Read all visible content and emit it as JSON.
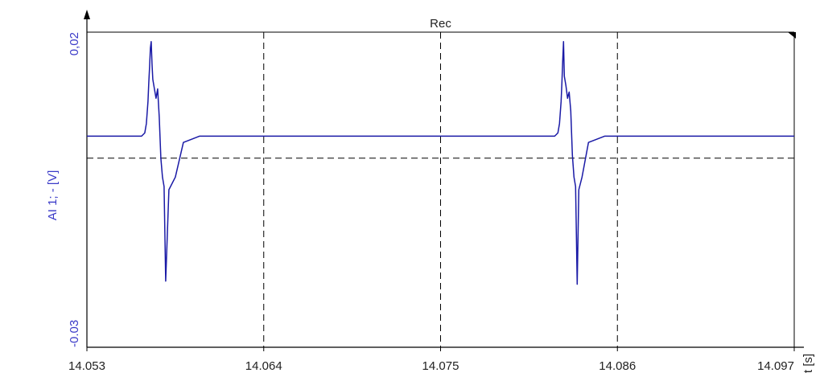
{
  "chart_data": {
    "type": "line",
    "title": "Rec",
    "xlabel": "t [s]",
    "ylabel": "AI 1; - [V]",
    "xlim": [
      14.053,
      14.097
    ],
    "ylim": [
      -0.03,
      0.02
    ],
    "x_ticks": [
      "14.053",
      "14.064",
      "14.075",
      "14.086",
      "14.097"
    ],
    "x_tick_values": [
      14.053,
      14.064,
      14.075,
      14.086,
      14.097
    ],
    "y_ticks": [
      "0,02",
      "-0.03"
    ],
    "y_tick_values": [
      0.02,
      -0.03
    ],
    "grid": true,
    "colors": {
      "series": "#1a1aa6",
      "ylabel": "#3a3ac8",
      "axis": "#000000",
      "grid": "#000000"
    },
    "series": [
      {
        "x": [
          14.053,
          14.0564,
          14.0566,
          14.0567,
          14.0568,
          14.05685,
          14.0569,
          14.05695,
          14.057,
          14.05705,
          14.0571,
          14.0572,
          14.0573,
          14.0574,
          14.0575,
          14.0576,
          14.0577,
          14.0578,
          14.0579,
          14.0581,
          14.0585,
          14.059,
          14.0595,
          14.06,
          14.0821,
          14.0823,
          14.0824,
          14.0825,
          14.08255,
          14.0826,
          14.08265,
          14.0827,
          14.0828,
          14.0829,
          14.083,
          14.0831,
          14.0832,
          14.0833,
          14.0834,
          14.0835,
          14.0836,
          14.0838,
          14.0842,
          14.0847,
          14.0852,
          14.097
        ],
        "y": [
          0.0035,
          0.0035,
          0.004,
          0.0055,
          0.009,
          0.012,
          0.0145,
          0.0175,
          0.0185,
          0.015,
          0.0125,
          0.011,
          0.0095,
          0.011,
          0.0065,
          0.0,
          -0.003,
          -0.0045,
          -0.0195,
          -0.005,
          -0.003,
          0.0025,
          0.003,
          0.0035,
          0.0035,
          0.004,
          0.0055,
          0.009,
          0.012,
          0.0155,
          0.0185,
          0.013,
          0.0115,
          0.0095,
          0.0105,
          0.0075,
          0.0005,
          -0.003,
          -0.0045,
          -0.02,
          -0.005,
          -0.003,
          0.0025,
          0.003,
          0.0035,
          0.0035
        ]
      }
    ],
    "reference_line_y": 0
  }
}
